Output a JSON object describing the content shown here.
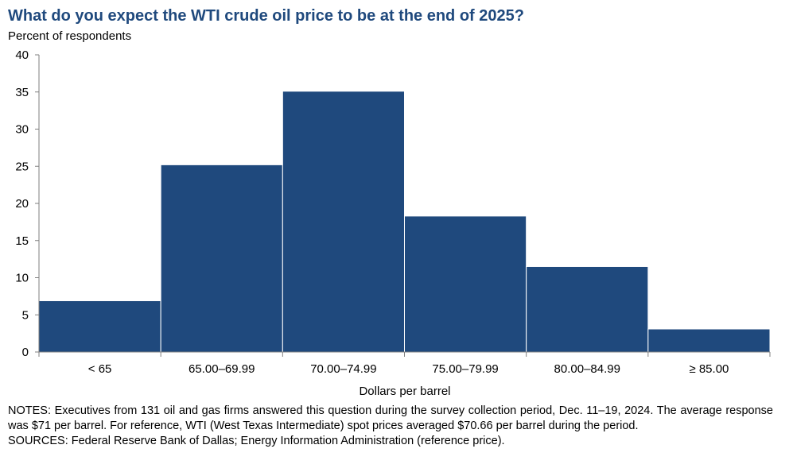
{
  "chart_data": {
    "type": "bar",
    "title": "What do you expect the WTI crude oil price to be at the end of 2025?",
    "ylabel": "Percent of respondents",
    "xlabel": "Dollars per barrel",
    "categories": [
      "< 65",
      "65.00–69.99",
      "70.00–74.99",
      "75.00–79.99",
      "80.00–84.99",
      "≥ 85.00"
    ],
    "values": [
      6.9,
      25.2,
      35.1,
      18.3,
      11.5,
      3.1
    ],
    "ylim": [
      0,
      40
    ],
    "yticks": [
      0,
      5,
      10,
      15,
      20,
      25,
      30,
      35,
      40
    ],
    "bar_color": "#1f497d",
    "grid": false,
    "legend": "none"
  },
  "notes": {
    "notes_text": "NOTES: Executives from 131 oil and gas firms answered this question during the survey collection period, Dec. 11–19, 2024. The average response was $71 per barrel. For reference, WTI (West Texas Intermediate) spot prices averaged $70.66 per barrel during the period.",
    "sources_text": "SOURCES: Federal Reserve Bank of Dallas; Energy Information Administration (reference price)."
  }
}
